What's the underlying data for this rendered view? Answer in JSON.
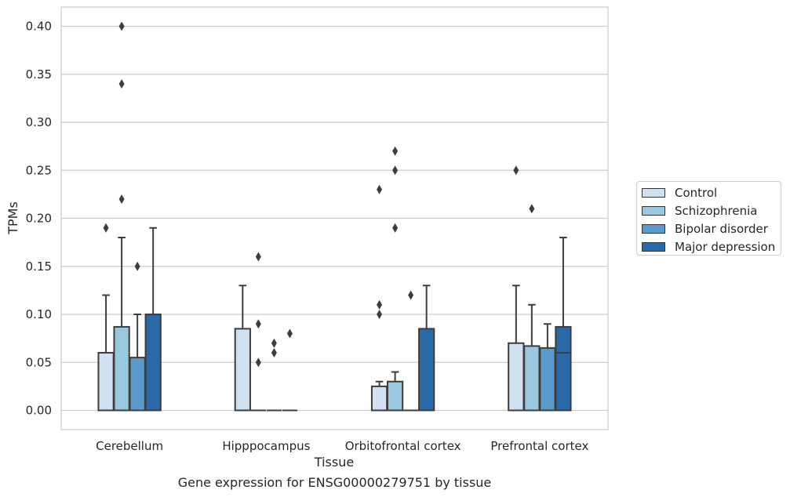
{
  "chart_data": {
    "type": "bar",
    "xlabel": "Tissue",
    "ylabel": "TPMs",
    "caption": "Gene expression for ENSG00000279751 by tissue",
    "categories": [
      "Cerebellum",
      "Hipppocampus",
      "Orbitofrontal cortex",
      "Prefrontal cortex"
    ],
    "ylim": [
      -0.02,
      0.42
    ],
    "yticks": [
      0.0,
      0.05,
      0.1,
      0.15,
      0.2,
      0.25,
      0.3,
      0.35,
      0.4
    ],
    "ytick_labels": [
      "0.00",
      "0.05",
      "0.10",
      "0.15",
      "0.20",
      "0.25",
      "0.30",
      "0.35",
      "0.40"
    ],
    "grid": true,
    "legend_position": "right",
    "series": [
      {
        "name": "Control",
        "color": "#d0e1f2",
        "boxes": [
          {
            "q1": 0.0,
            "median": 0.0,
            "q3": 0.06,
            "whisker_low": 0.0,
            "whisker_high": 0.12,
            "outliers": [
              0.19
            ]
          },
          {
            "q1": 0.0,
            "median": 0.0,
            "q3": 0.085,
            "whisker_low": 0.0,
            "whisker_high": 0.13,
            "outliers": []
          },
          {
            "q1": 0.0,
            "median": 0.0,
            "q3": 0.025,
            "whisker_low": 0.0,
            "whisker_high": 0.03,
            "outliers": [
              0.1,
              0.11,
              0.23
            ]
          },
          {
            "q1": 0.0,
            "median": 0.0,
            "q3": 0.07,
            "whisker_low": 0.0,
            "whisker_high": 0.13,
            "outliers": [
              0.25
            ]
          }
        ]
      },
      {
        "name": "Schizophrenia",
        "color": "#9ac8e0",
        "boxes": [
          {
            "q1": 0.0,
            "median": 0.0,
            "q3": 0.087,
            "whisker_low": 0.0,
            "whisker_high": 0.18,
            "outliers": [
              0.22,
              0.34,
              0.4
            ]
          },
          {
            "q1": 0.0,
            "median": 0.0,
            "q3": 0.0,
            "whisker_low": 0.0,
            "whisker_high": 0.0,
            "outliers": [
              0.05,
              0.09,
              0.16
            ]
          },
          {
            "q1": 0.0,
            "median": 0.0,
            "q3": 0.03,
            "whisker_low": 0.0,
            "whisker_high": 0.04,
            "outliers": [
              0.19,
              0.25,
              0.27
            ]
          },
          {
            "q1": 0.0,
            "median": 0.0,
            "q3": 0.067,
            "whisker_low": 0.0,
            "whisker_high": 0.11,
            "outliers": [
              0.21
            ]
          }
        ]
      },
      {
        "name": "Bipolar disorder",
        "color": "#5b9bcb",
        "boxes": [
          {
            "q1": 0.0,
            "median": 0.0,
            "q3": 0.055,
            "whisker_low": 0.0,
            "whisker_high": 0.1,
            "outliers": [
              0.15
            ]
          },
          {
            "q1": 0.0,
            "median": 0.0,
            "q3": 0.0,
            "whisker_low": 0.0,
            "whisker_high": 0.0,
            "outliers": [
              0.06,
              0.07
            ]
          },
          {
            "q1": 0.0,
            "median": 0.0,
            "q3": 0.0,
            "whisker_low": 0.0,
            "whisker_high": 0.0,
            "outliers": [
              0.12
            ]
          },
          {
            "q1": 0.0,
            "median": 0.0,
            "q3": 0.065,
            "whisker_low": 0.0,
            "whisker_high": 0.09,
            "outliers": []
          }
        ]
      },
      {
        "name": "Major depression",
        "color": "#2a69a8",
        "boxes": [
          {
            "q1": 0.0,
            "median": 0.0,
            "q3": 0.1,
            "whisker_low": 0.0,
            "whisker_high": 0.19,
            "outliers": []
          },
          {
            "q1": 0.0,
            "median": 0.0,
            "q3": 0.0,
            "whisker_low": 0.0,
            "whisker_high": 0.0,
            "outliers": [
              0.08
            ]
          },
          {
            "q1": 0.0,
            "median": 0.0,
            "q3": 0.085,
            "whisker_low": 0.0,
            "whisker_high": 0.13,
            "outliers": []
          },
          {
            "q1": 0.0,
            "median": 0.06,
            "q3": 0.087,
            "whisker_low": 0.0,
            "whisker_high": 0.18,
            "outliers": []
          }
        ]
      }
    ]
  }
}
